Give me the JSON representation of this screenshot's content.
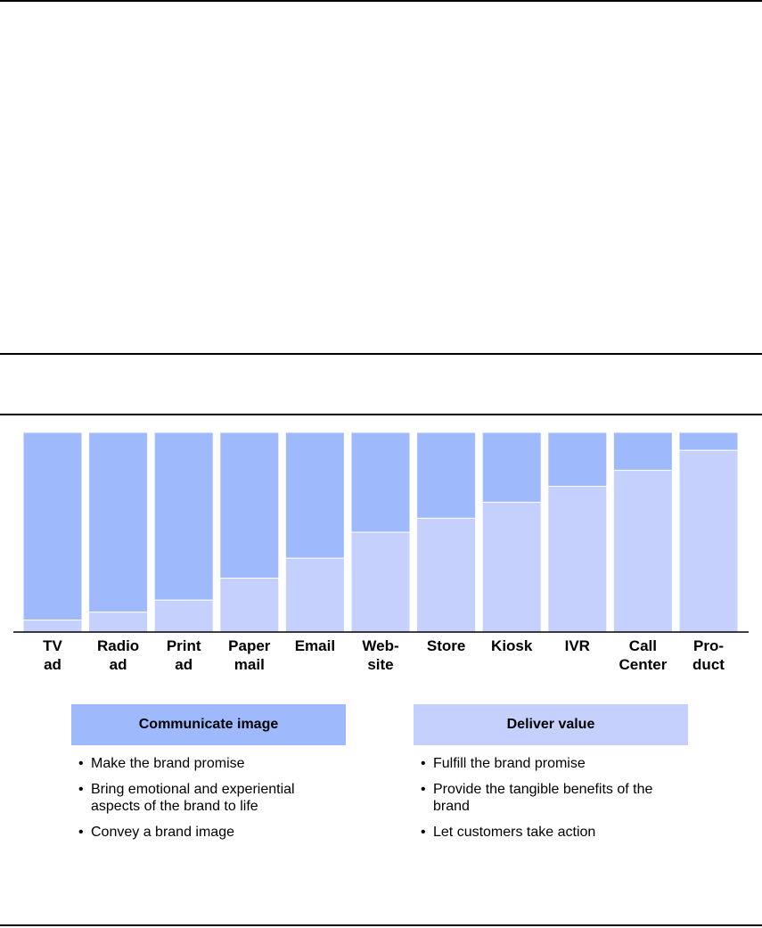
{
  "colors": {
    "communicate": "#9fbafc",
    "deliver": "#c5d0fc",
    "rule": "#000000"
  },
  "chart_data": {
    "type": "bar",
    "stacked": true,
    "categories": [
      "TV\nad",
      "Radio\nad",
      "Print\nad",
      "Paper\nmail",
      "Email",
      "Web-\nsite",
      "Store",
      "Kiosk",
      "IVR",
      "Call\nCenter",
      "Pro-\nduct"
    ],
    "series": [
      {
        "name": "Deliver value",
        "values": [
          6,
          10,
          16,
          27,
          37,
          50,
          57,
          65,
          73,
          81,
          91
        ]
      },
      {
        "name": "Communicate image",
        "values": [
          94,
          90,
          84,
          73,
          63,
          50,
          43,
          35,
          27,
          19,
          9
        ]
      }
    ],
    "ylim": [
      0,
      100
    ],
    "grid": false
  },
  "legend": {
    "communicate": {
      "title": "Communicate image",
      "bullets": [
        "Make the brand promise",
        "Bring emotional and experiential aspects of the brand to life",
        "Convey a brand image"
      ]
    },
    "deliver": {
      "title": "Deliver value",
      "bullets": [
        "Fulfill the brand promise",
        "Provide the tangible benefits of the brand",
        "Let customers take action"
      ]
    }
  }
}
